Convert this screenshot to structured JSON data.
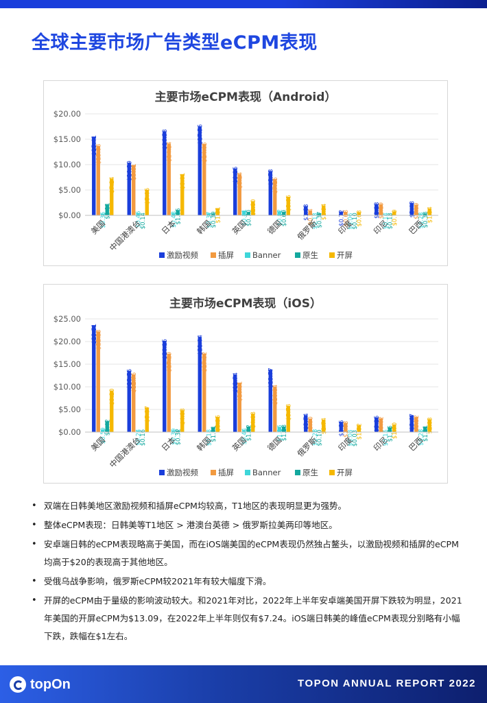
{
  "page": {
    "title": "全球主要市场广告类型eCPM表现",
    "footer_logo": "topOn",
    "footer_report": "TOPON ANNUAL REPORT 2022"
  },
  "colors": {
    "激励视频": "#1a3edb",
    "插屏": "#f29a40",
    "Banner": "#3ed6d9",
    "原生": "#13a89e",
    "开屏": "#f5b800",
    "accent": "#1f47e0"
  },
  "chart_data": [
    {
      "id": "android",
      "type": "bar",
      "title": "主要市场eCPM表现（Android）",
      "categories": [
        "美国",
        "中国港澳台",
        "日本",
        "韩国",
        "英国",
        "德国",
        "俄罗斯",
        "印度",
        "印尼",
        "巴西"
      ],
      "yticks": [
        "$0.00",
        "$5.00",
        "$10.00",
        "$15.00",
        "$20.00"
      ],
      "ylim": [
        0,
        20
      ],
      "legend_position": "bottom",
      "series": [
        {
          "name": "激励视频",
          "values": [
            15.41,
            10.39,
            16.58,
            17.56,
            9.25,
            8.73,
            1.83,
            0.72,
            2.23,
            2.43
          ],
          "labels": [
            "$15.41",
            "$10.39",
            "$16.58",
            "$17.56",
            "$9.25",
            "$8.73",
            "$1.83",
            "$0.72",
            "$2.23",
            "$2.43"
          ]
        },
        {
          "name": "插屏",
          "values": [
            13.68,
            9.81,
            14.14,
            14.05,
            8.14,
            7.15,
            0.94,
            0.68,
            2.19,
            2.09
          ],
          "labels": [
            "$13.68",
            "$9.81",
            "$14.14",
            "$14.05",
            "$8.14",
            "$7.15",
            "$0.94",
            "$0.68",
            "$2.19",
            "$2.09"
          ]
        },
        {
          "name": "Banner",
          "values": [
            0.35,
            0.46,
            0.43,
            0.37,
            0.81,
            0.82,
            0.13,
            0.06,
            0.14,
            0.23
          ],
          "labels": [
            "$0.35",
            "$0.46",
            "$0.43",
            "$0.37",
            "$0.81",
            "$0.82",
            "$0.13",
            "$0.06",
            "$0.14",
            "$0.23"
          ]
        },
        {
          "name": "原生",
          "values": [
            2.11,
            0.14,
            1.05,
            0.39,
            0.7,
            0.69,
            0.37,
            0.1,
            0.13,
            0.38
          ],
          "labels": [
            "$2.11",
            "$0.14",
            "$1.05",
            "$0.39",
            "$0.70",
            "$0.69",
            "$0.37",
            "$0.10",
            "$0.13",
            "$0.38"
          ]
        },
        {
          "name": "开屏",
          "values": [
            7.24,
            5.05,
            8.01,
            1.31,
            2.8,
            3.65,
            1.94,
            0.63,
            0.79,
            1.34
          ],
          "labels": [
            "$7.24",
            "$5.05",
            "$8.01",
            "$1.31",
            "$2.80",
            "$3.65",
            "$1.94",
            "$0.63",
            "$0.79",
            "$1.34"
          ]
        }
      ]
    },
    {
      "id": "ios",
      "type": "bar",
      "title": "主要市场eCPM表现（iOS）",
      "categories": [
        "美国",
        "中国港澳台",
        "日本",
        "韩国",
        "英国",
        "德国",
        "俄罗斯",
        "印度",
        "印尼",
        "巴西"
      ],
      "yticks": [
        "$0.00",
        "$5.00",
        "$10.00",
        "$15.00",
        "$20.00",
        "$25.00"
      ],
      "ylim": [
        0,
        25
      ],
      "legend_position": "bottom",
      "series": [
        {
          "name": "激励视频",
          "values": [
            23.51,
            13.55,
            20.15,
            21.04,
            12.74,
            13.77,
            3.74,
            2.25,
            3.25,
            3.67
          ],
          "labels": [
            "$23.51",
            "$13.55",
            "$20.15",
            "$21.04",
            "$12.74",
            "$13.77",
            "$3.74",
            "$2.25",
            "$3.25",
            "$3.67"
          ]
        },
        {
          "name": "插屏",
          "values": [
            22.23,
            12.76,
            17.29,
            17.32,
            10.81,
            10.04,
            3.0,
            2.03,
            3.02,
            3.32
          ],
          "labels": [
            "$22.23",
            "$12.76",
            "$17.29",
            "$17.32",
            "$10.81",
            "$10.04",
            "$3.00",
            "$2.03",
            "$3.02",
            "$3.32"
          ]
        },
        {
          "name": "Banner",
          "values": [
            0.59,
            0.24,
            0.39,
            0.18,
            0.44,
            1.16,
            0.23,
            0.08,
            0.15,
            0.23
          ],
          "labels": [
            "$0.59",
            "$0.24",
            "$0.39",
            "$0.18",
            "$0.44",
            "$1.16",
            "$0.23",
            "$0.08",
            "$0.15",
            "$0.23"
          ]
        },
        {
          "name": "原生",
          "values": [
            2.42,
            0.16,
            0.32,
            1.01,
            1.22,
            1.23,
            0.1,
            0.03,
            1.05,
            1.11
          ],
          "labels": [
            "$2.42",
            "$0.16",
            "$0.32",
            "$1.01",
            "$1.22",
            "$1.23",
            "$0.10",
            "$0.03",
            "$1.05",
            "$1.11"
          ]
        },
        {
          "name": "开屏",
          "values": [
            9.2,
            5.37,
            4.83,
            3.35,
            4.08,
            5.78,
            2.74,
            1.52,
            1.7,
            2.83
          ],
          "labels": [
            "$9.20",
            "$5.37",
            "$4.83",
            "$3.35",
            "$4.08",
            "$5.78",
            "$2.74",
            "$1.52",
            "$1.70",
            "$2.83"
          ]
        }
      ]
    }
  ],
  "bullets": [
    "双端在日韩美地区激励视频和插屏eCPM均较高，T1地区的表现明显更为强势。",
    "整体eCPM表现：日韩美等T1地区 > 港澳台英德 > 俄罗斯拉美两印等地区。",
    "安卓端日韩的eCPM表现略高于美国，而在iOS端美国的eCPM表现仍然独占鳌头，以激励视频和插屏的eCPM均高于$20的表现高于其他地区。",
    "受俄乌战争影响，俄罗斯eCPM较2021年有较大幅度下滑。",
    "开屏的eCPM由于量级的影响波动较大。和2021年对比，2022年上半年安卓端美国开屏下跌较为明显，2021年美国的开屏eCPM为$13.09，在2022年上半年则仅有$7.24。iOS端日韩美的峰值eCPM表现分别略有小幅下跌，跌幅在$1左右。"
  ]
}
